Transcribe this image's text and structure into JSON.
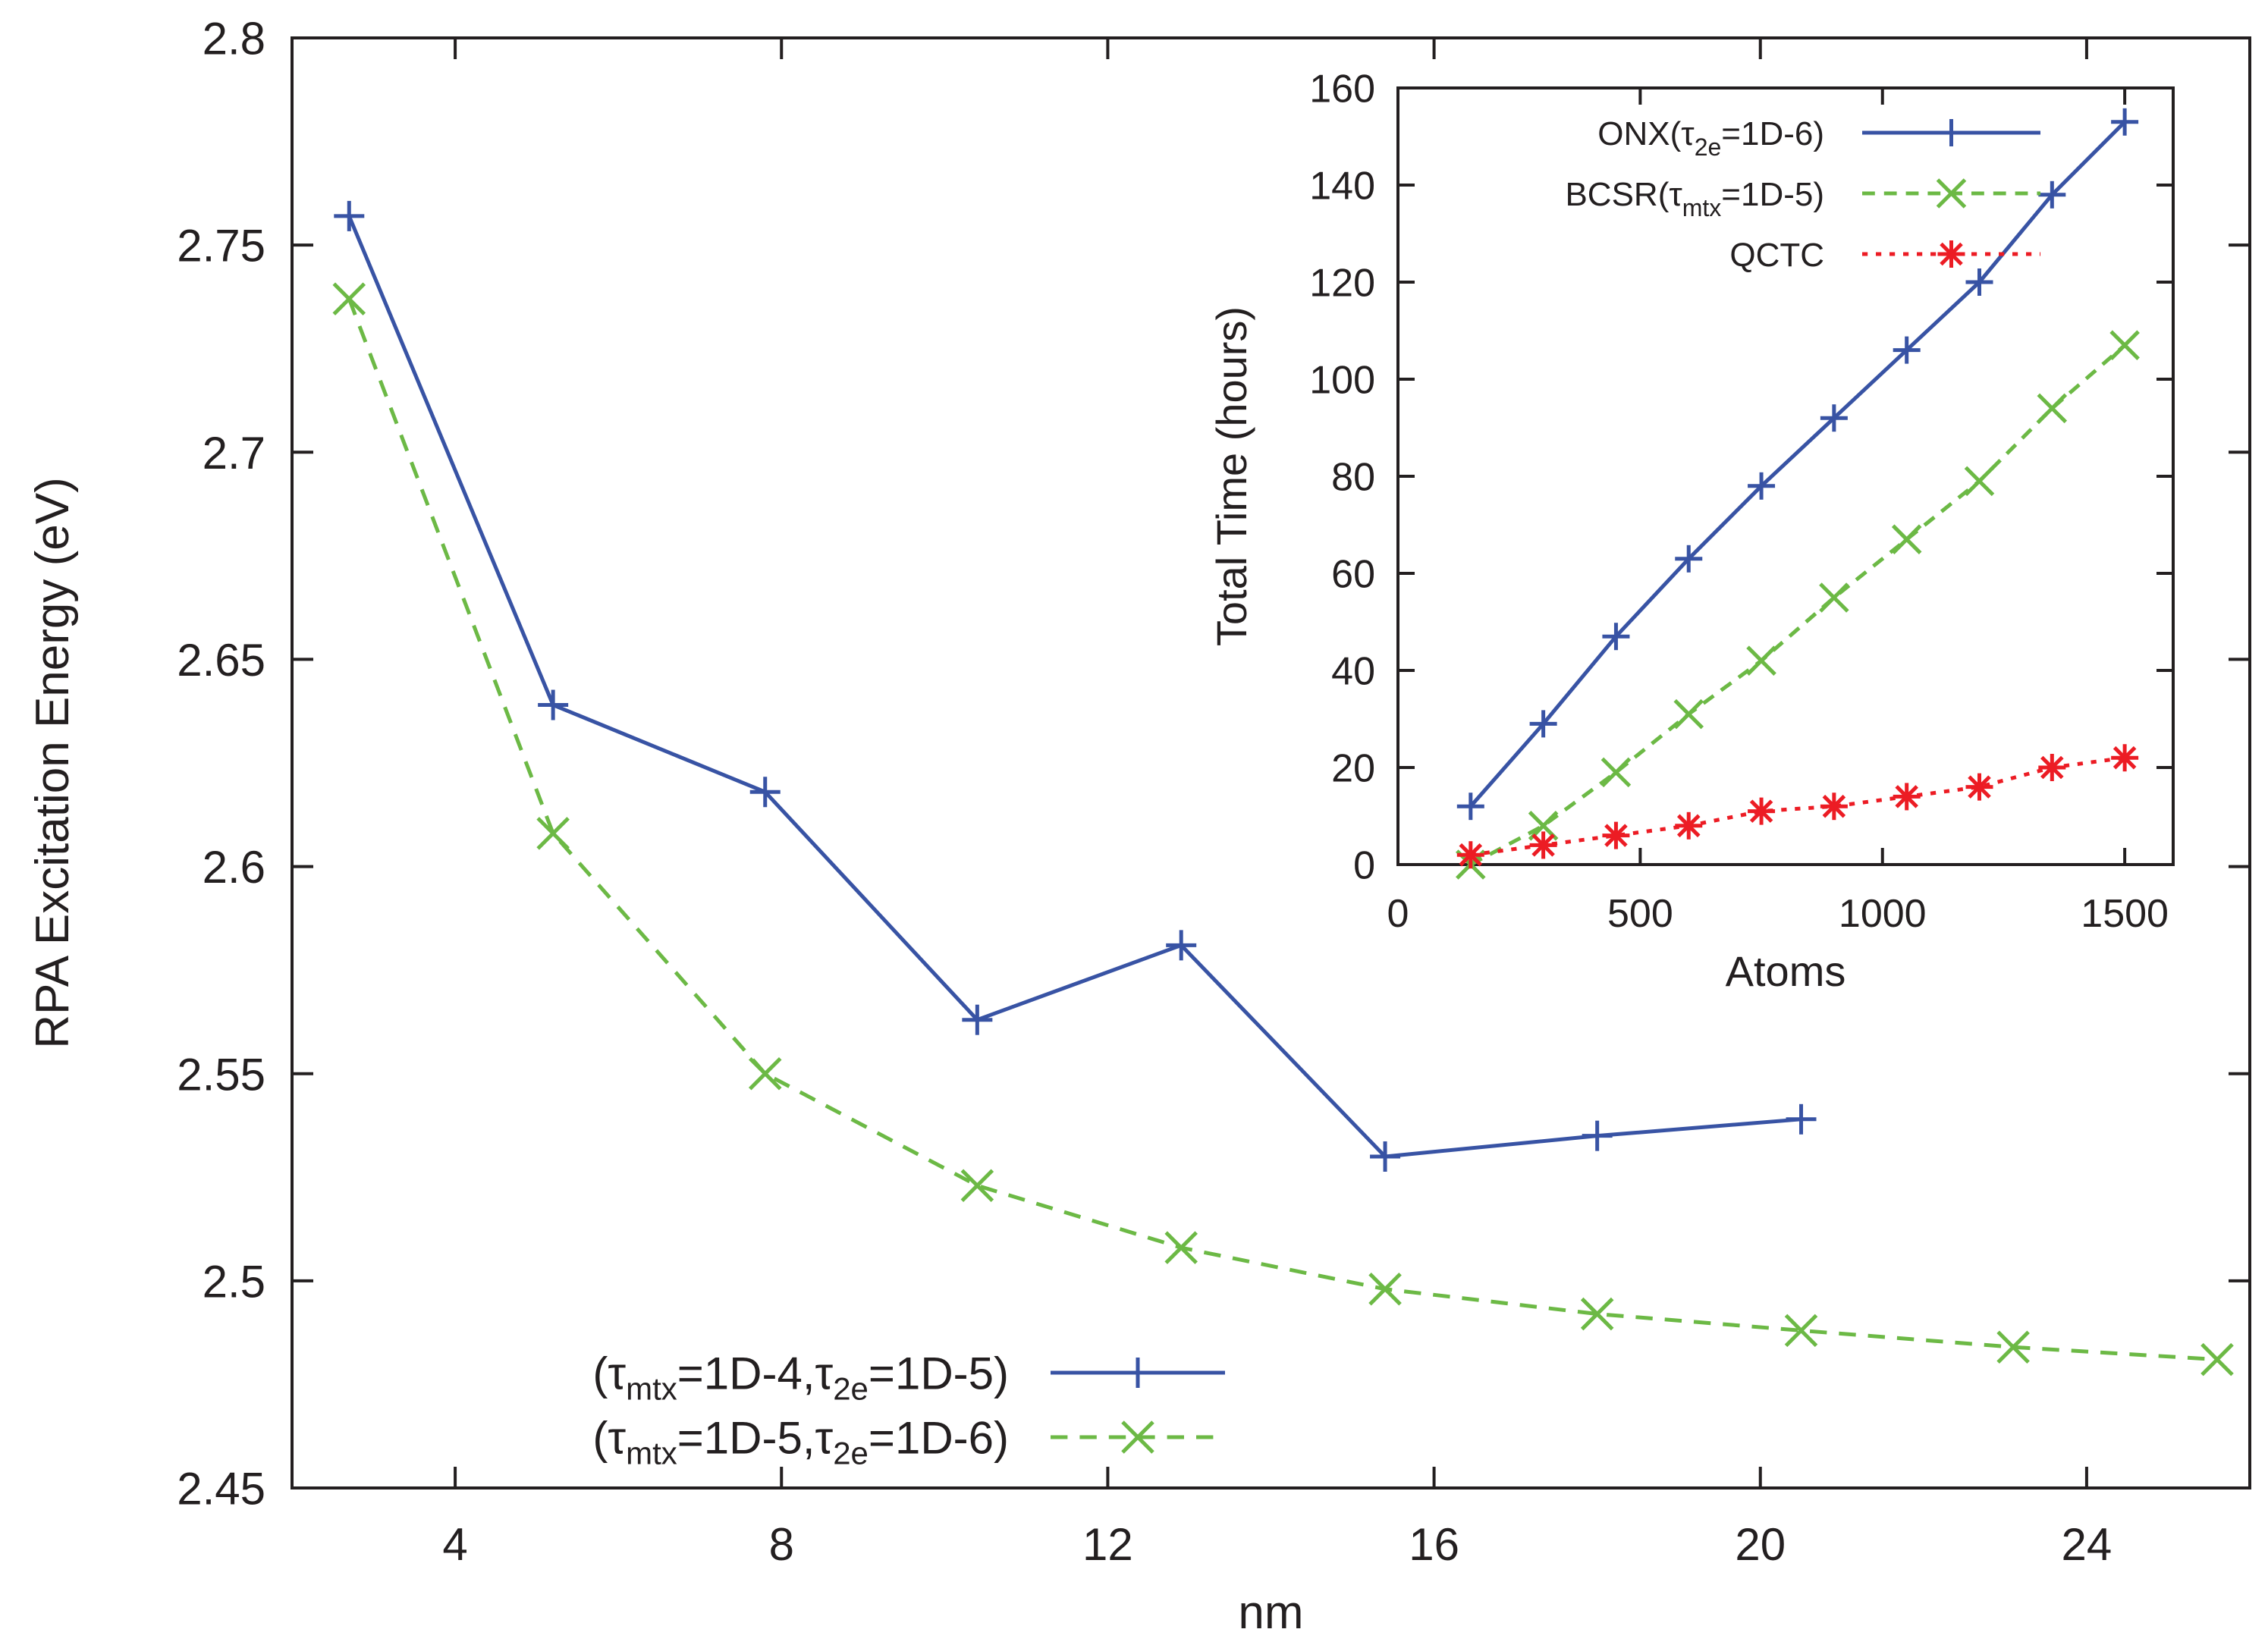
{
  "chart_data": [
    {
      "id": "main",
      "type": "line",
      "title": "",
      "xlabel": "nm",
      "ylabel": "RPA Excitation Energy (eV)",
      "xlim": [
        2,
        26
      ],
      "ylim": [
        2.45,
        2.8
      ],
      "xticks": [
        4,
        8,
        12,
        16,
        20,
        24
      ],
      "yticks": [
        2.45,
        2.5,
        2.55,
        2.6,
        2.65,
        2.7,
        2.75,
        2.8
      ],
      "ytick_labels": [
        "2.45",
        "2.5",
        "2.55",
        "2.6",
        "2.65",
        "2.7",
        "2.75",
        "2.8"
      ],
      "legend_position": "bottom-left",
      "series": [
        {
          "name": "(τmtx=1D-4,τ2e=1D-5)",
          "legend_parts": [
            "(τ",
            "mtx",
            "=1D-4,τ",
            "2e",
            "=1D-5)"
          ],
          "color": "#3853a4",
          "marker": "plus",
          "dash": "solid",
          "x": [
            2.7,
            5.2,
            7.8,
            10.4,
            12.9,
            15.4,
            18.0,
            20.5
          ],
          "y": [
            2.757,
            2.639,
            2.618,
            2.563,
            2.581,
            2.53,
            2.535,
            2.539
          ]
        },
        {
          "name": "(τmtx=1D-5,τ2e=1D-6)",
          "legend_parts": [
            "(τ",
            "mtx",
            "=1D-5,τ",
            "2e",
            "=1D-6)"
          ],
          "color": "#6cb945",
          "marker": "x",
          "dash": "dashed",
          "x": [
            2.7,
            5.2,
            7.8,
            10.4,
            12.9,
            15.4,
            18.0,
            20.5,
            23.1,
            25.6
          ],
          "y": [
            2.737,
            2.608,
            2.55,
            2.523,
            2.508,
            2.498,
            2.492,
            2.488,
            2.484,
            2.481
          ]
        }
      ]
    },
    {
      "id": "inset",
      "type": "line",
      "title": "",
      "xlabel": "Atoms",
      "ylabel": "Total Time (hours)",
      "xlim": [
        0,
        1600
      ],
      "ylim": [
        0,
        160
      ],
      "xticks": [
        0,
        500,
        1000,
        1500
      ],
      "yticks": [
        0,
        20,
        40,
        60,
        80,
        100,
        120,
        140,
        160
      ],
      "legend_position": "top-left",
      "series": [
        {
          "name": "ONX(τ2e=1D-6)",
          "legend_parts": [
            "ONX(τ",
            "2e",
            "=1D-6)"
          ],
          "color": "#3853a4",
          "marker": "plus",
          "dash": "solid",
          "x": [
            150,
            300,
            450,
            600,
            750,
            900,
            1050,
            1200,
            1350,
            1500
          ],
          "y": [
            12,
            29,
            47,
            63,
            78,
            92,
            106,
            120,
            138,
            153
          ]
        },
        {
          "name": "BCSR(τmtx=1D-5)",
          "legend_parts": [
            "BCSR(τ",
            "mtx",
            "=1D-5)"
          ],
          "color": "#6cb945",
          "marker": "x",
          "dash": "dashed",
          "x": [
            150,
            300,
            450,
            600,
            750,
            900,
            1050,
            1200,
            1350,
            1500
          ],
          "y": [
            0,
            8,
            19,
            31,
            42,
            55,
            67,
            79,
            94,
            107
          ]
        },
        {
          "name": "QCTC",
          "legend_parts": [
            "QCTC"
          ],
          "color": "#ec1c24",
          "marker": "star",
          "dash": "dotted",
          "x": [
            150,
            300,
            450,
            600,
            750,
            900,
            1050,
            1200,
            1350,
            1500
          ],
          "y": [
            2,
            4,
            6,
            8,
            11,
            12,
            14,
            16,
            20,
            22
          ]
        }
      ]
    }
  ]
}
